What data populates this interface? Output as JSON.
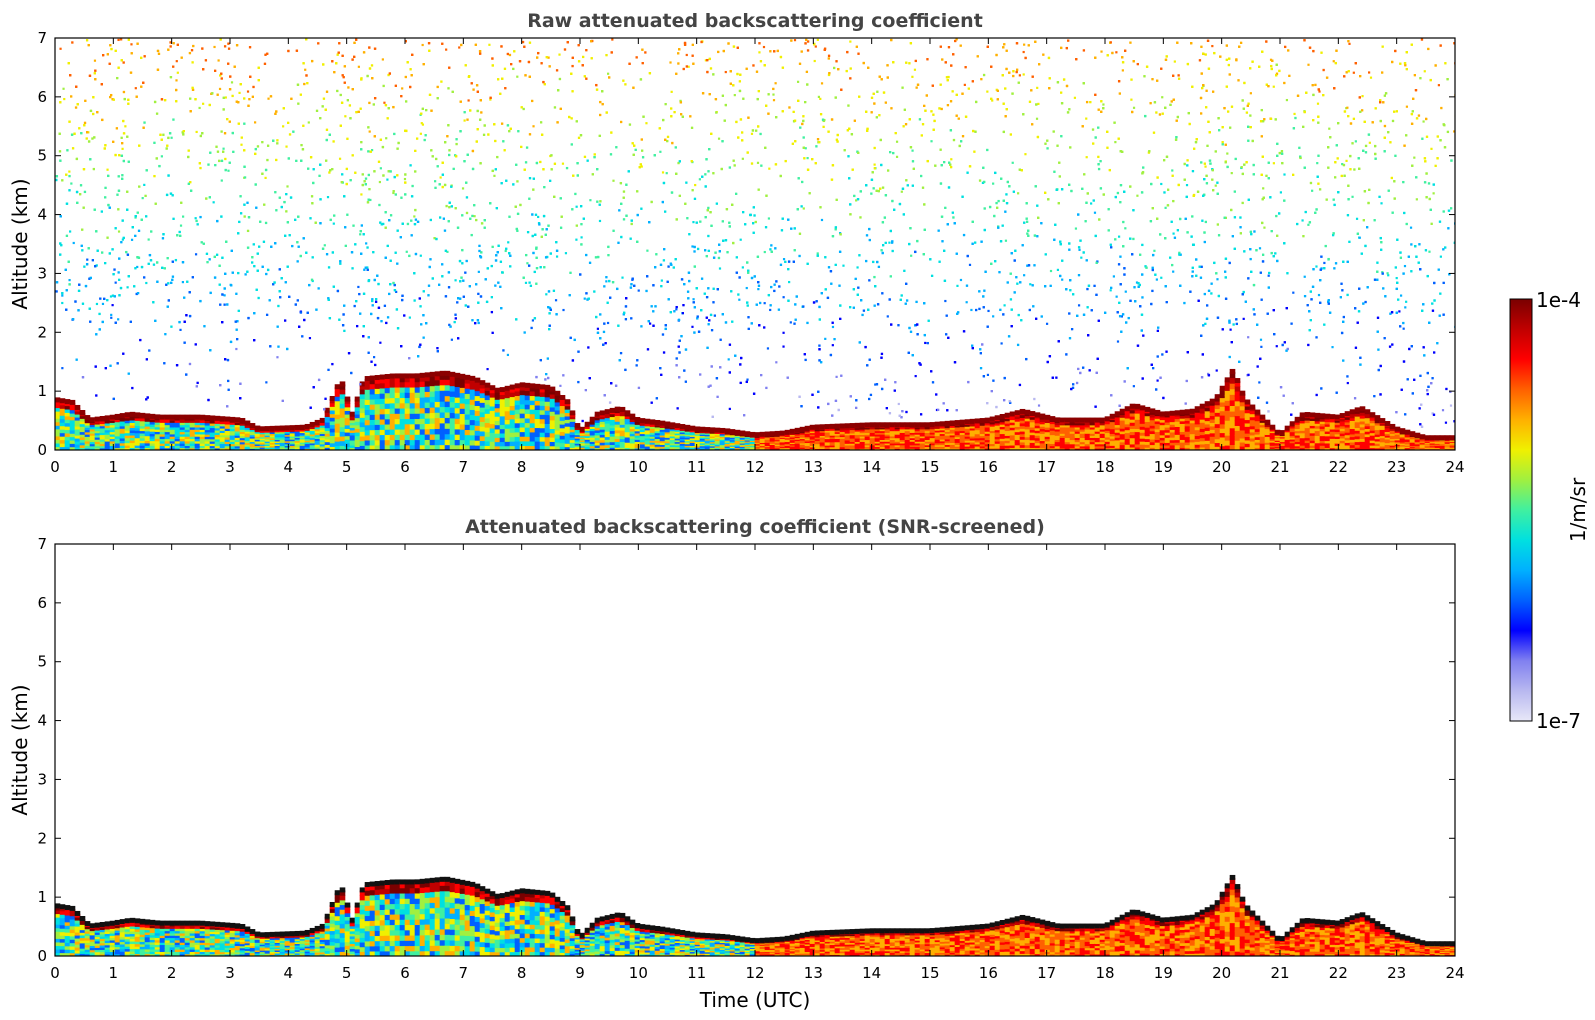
{
  "chart_data": [
    {
      "type": "heatmap",
      "title": "Raw attenuated backscattering coefficient",
      "xlabel": "",
      "ylabel": "Altitude (km)",
      "xlim": [
        0,
        24
      ],
      "ylim": [
        0,
        7
      ],
      "xticks": [
        "0",
        "1",
        "2",
        "3",
        "4",
        "5",
        "6",
        "7",
        "8",
        "9",
        "10",
        "11",
        "12",
        "13",
        "14",
        "15",
        "16",
        "17",
        "18",
        "19",
        "20",
        "21",
        "22",
        "23",
        "24"
      ],
      "yticks": [
        "0",
        "1",
        "2",
        "3",
        "4",
        "5",
        "6",
        "7"
      ],
      "screened": false,
      "layer_top_km": [
        [
          0,
          0.85
        ],
        [
          0.3,
          0.8
        ],
        [
          0.6,
          0.5
        ],
        [
          1,
          0.55
        ],
        [
          1.3,
          0.6
        ],
        [
          1.8,
          0.55
        ],
        [
          2.5,
          0.55
        ],
        [
          3.2,
          0.5
        ],
        [
          3.5,
          0.35
        ],
        [
          4.3,
          0.38
        ],
        [
          4.6,
          0.5
        ],
        [
          4.9,
          1.2
        ],
        [
          5.1,
          0.6
        ],
        [
          5.3,
          1.2
        ],
        [
          5.8,
          1.25
        ],
        [
          6.2,
          1.25
        ],
        [
          6.7,
          1.3
        ],
        [
          7.2,
          1.2
        ],
        [
          7.6,
          1.0
        ],
        [
          8,
          1.1
        ],
        [
          8.5,
          1.05
        ],
        [
          8.8,
          0.8
        ],
        [
          9,
          0.3
        ],
        [
          9.3,
          0.6
        ],
        [
          9.7,
          0.7
        ],
        [
          10,
          0.5
        ],
        [
          10.4,
          0.45
        ],
        [
          11,
          0.35
        ],
        [
          11.5,
          0.32
        ],
        [
          12,
          0.25
        ],
        [
          12.5,
          0.28
        ],
        [
          13,
          0.38
        ],
        [
          14,
          0.42
        ],
        [
          15,
          0.42
        ],
        [
          16,
          0.5
        ],
        [
          16.6,
          0.65
        ],
        [
          17.2,
          0.5
        ],
        [
          18,
          0.5
        ],
        [
          18.5,
          0.75
        ],
        [
          19,
          0.6
        ],
        [
          19.5,
          0.65
        ],
        [
          19.9,
          0.85
        ],
        [
          20.2,
          1.35
        ],
        [
          20.4,
          0.85
        ],
        [
          20.8,
          0.45
        ],
        [
          21,
          0.25
        ],
        [
          21.4,
          0.6
        ],
        [
          22,
          0.55
        ],
        [
          22.4,
          0.7
        ],
        [
          23,
          0.35
        ],
        [
          23.5,
          0.2
        ],
        [
          24,
          0.2
        ]
      ]
    },
    {
      "type": "heatmap",
      "title": "Attenuated backscattering coefficient (SNR-screened)",
      "xlabel": "Time (UTC)",
      "ylabel": "Altitude (km)",
      "xlim": [
        0,
        24
      ],
      "ylim": [
        0,
        7
      ],
      "xticks": [
        "0",
        "1",
        "2",
        "3",
        "4",
        "5",
        "6",
        "7",
        "8",
        "9",
        "10",
        "11",
        "12",
        "13",
        "14",
        "15",
        "16",
        "17",
        "18",
        "19",
        "20",
        "21",
        "22",
        "23",
        "24"
      ],
      "yticks": [
        "0",
        "1",
        "2",
        "3",
        "4",
        "5",
        "6",
        "7"
      ],
      "screened": true,
      "layer_top_km": [
        [
          0,
          0.85
        ],
        [
          0.3,
          0.8
        ],
        [
          0.6,
          0.5
        ],
        [
          1,
          0.55
        ],
        [
          1.3,
          0.6
        ],
        [
          1.8,
          0.55
        ],
        [
          2.5,
          0.55
        ],
        [
          3.2,
          0.5
        ],
        [
          3.5,
          0.35
        ],
        [
          4.3,
          0.38
        ],
        [
          4.6,
          0.5
        ],
        [
          4.9,
          1.2
        ],
        [
          5.1,
          0.6
        ],
        [
          5.3,
          1.2
        ],
        [
          5.8,
          1.25
        ],
        [
          6.2,
          1.25
        ],
        [
          6.7,
          1.3
        ],
        [
          7.2,
          1.2
        ],
        [
          7.6,
          1.0
        ],
        [
          8,
          1.1
        ],
        [
          8.5,
          1.05
        ],
        [
          8.8,
          0.8
        ],
        [
          9,
          0.3
        ],
        [
          9.3,
          0.6
        ],
        [
          9.7,
          0.7
        ],
        [
          10,
          0.5
        ],
        [
          10.4,
          0.45
        ],
        [
          11,
          0.35
        ],
        [
          11.5,
          0.32
        ],
        [
          12,
          0.25
        ],
        [
          12.5,
          0.28
        ],
        [
          13,
          0.38
        ],
        [
          14,
          0.42
        ],
        [
          15,
          0.42
        ],
        [
          16,
          0.5
        ],
        [
          16.6,
          0.65
        ],
        [
          17.2,
          0.5
        ],
        [
          18,
          0.5
        ],
        [
          18.5,
          0.75
        ],
        [
          19,
          0.6
        ],
        [
          19.5,
          0.65
        ],
        [
          19.9,
          0.85
        ],
        [
          20.2,
          1.35
        ],
        [
          20.4,
          0.85
        ],
        [
          20.8,
          0.45
        ],
        [
          21,
          0.25
        ],
        [
          21.4,
          0.6
        ],
        [
          22,
          0.55
        ],
        [
          22.4,
          0.7
        ],
        [
          23,
          0.35
        ],
        [
          23.5,
          0.2
        ],
        [
          24,
          0.2
        ]
      ]
    }
  ],
  "colorbar": {
    "label": "1/m/sr",
    "max_label": "1e-4",
    "min_label": "1e-7",
    "scale": "log",
    "range": [
      1e-07,
      0.0001
    ],
    "colors": [
      "#e8e8f8",
      "#b8b8f0",
      "#8080f0",
      "#0000ff",
      "#0060ff",
      "#00b0ff",
      "#00e0e0",
      "#40f0a0",
      "#a0f040",
      "#f0f000",
      "#ffb000",
      "#ff6000",
      "#ff0000",
      "#c00000",
      "#7a0000"
    ]
  }
}
